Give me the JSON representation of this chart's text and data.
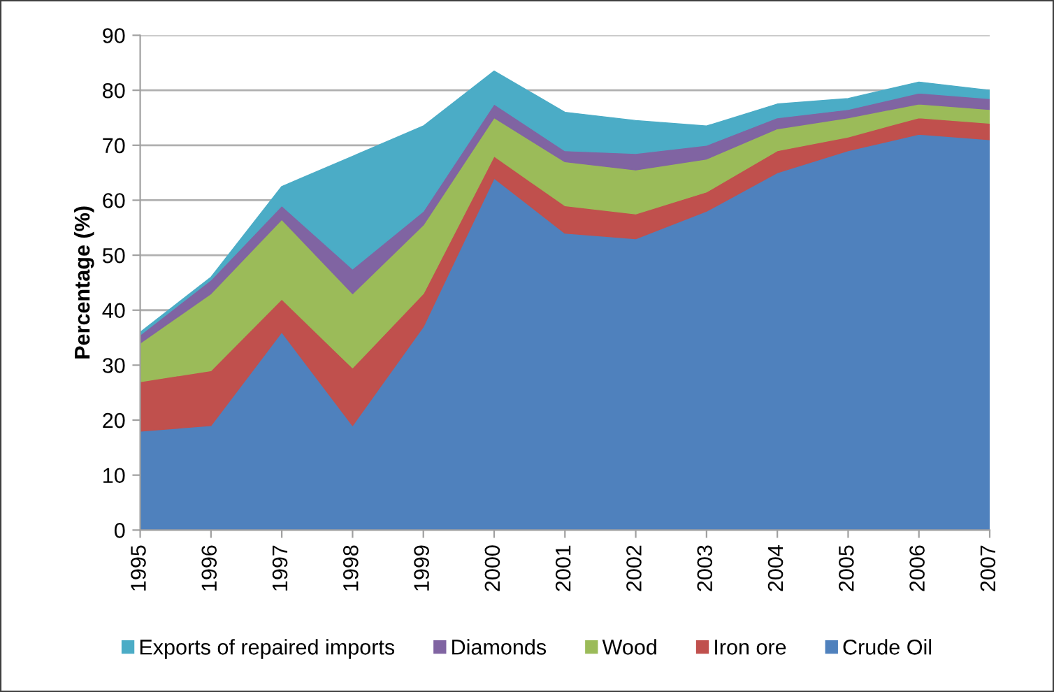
{
  "chart_data": {
    "type": "area",
    "stacked": true,
    "ylabel": "Percentage (%)",
    "categories": [
      "1995",
      "1996",
      "1997",
      "1998",
      "1999",
      "2000",
      "2001",
      "2002",
      "2003",
      "2004",
      "2005",
      "2006",
      "2007"
    ],
    "ylim": [
      0,
      90
    ],
    "yticks": [
      0,
      10,
      20,
      30,
      40,
      50,
      60,
      70,
      80,
      90
    ],
    "grid": "y",
    "legend": "bottom",
    "series": [
      {
        "name": "Crude Oil",
        "color": "#4f81bd",
        "values": [
          18,
          19,
          36,
          19,
          37,
          64,
          54,
          53,
          58,
          65,
          69,
          72,
          71
        ]
      },
      {
        "name": "Iron ore",
        "color": "#c0504d",
        "values": [
          9,
          10,
          6,
          10.5,
          6,
          4,
          5,
          4.5,
          3.5,
          4,
          2.5,
          3,
          3
        ]
      },
      {
        "name": "Wood",
        "color": "#9bbb59",
        "values": [
          7,
          14,
          14.5,
          13.5,
          12.5,
          7,
          8,
          8,
          6,
          4,
          3.5,
          2.5,
          2.5
        ]
      },
      {
        "name": "Diamonds",
        "color": "#8064a2",
        "values": [
          1.5,
          2.5,
          2.5,
          4.5,
          2.5,
          2.5,
          2,
          3,
          2.5,
          2,
          1.5,
          2,
          2
        ]
      },
      {
        "name": "Exports of repaired imports",
        "color": "#4bacc6",
        "values": [
          0.5,
          0.5,
          3.5,
          20.5,
          15.5,
          6,
          7,
          6,
          3.5,
          2.5,
          2,
          2,
          1.5
        ]
      }
    ]
  }
}
